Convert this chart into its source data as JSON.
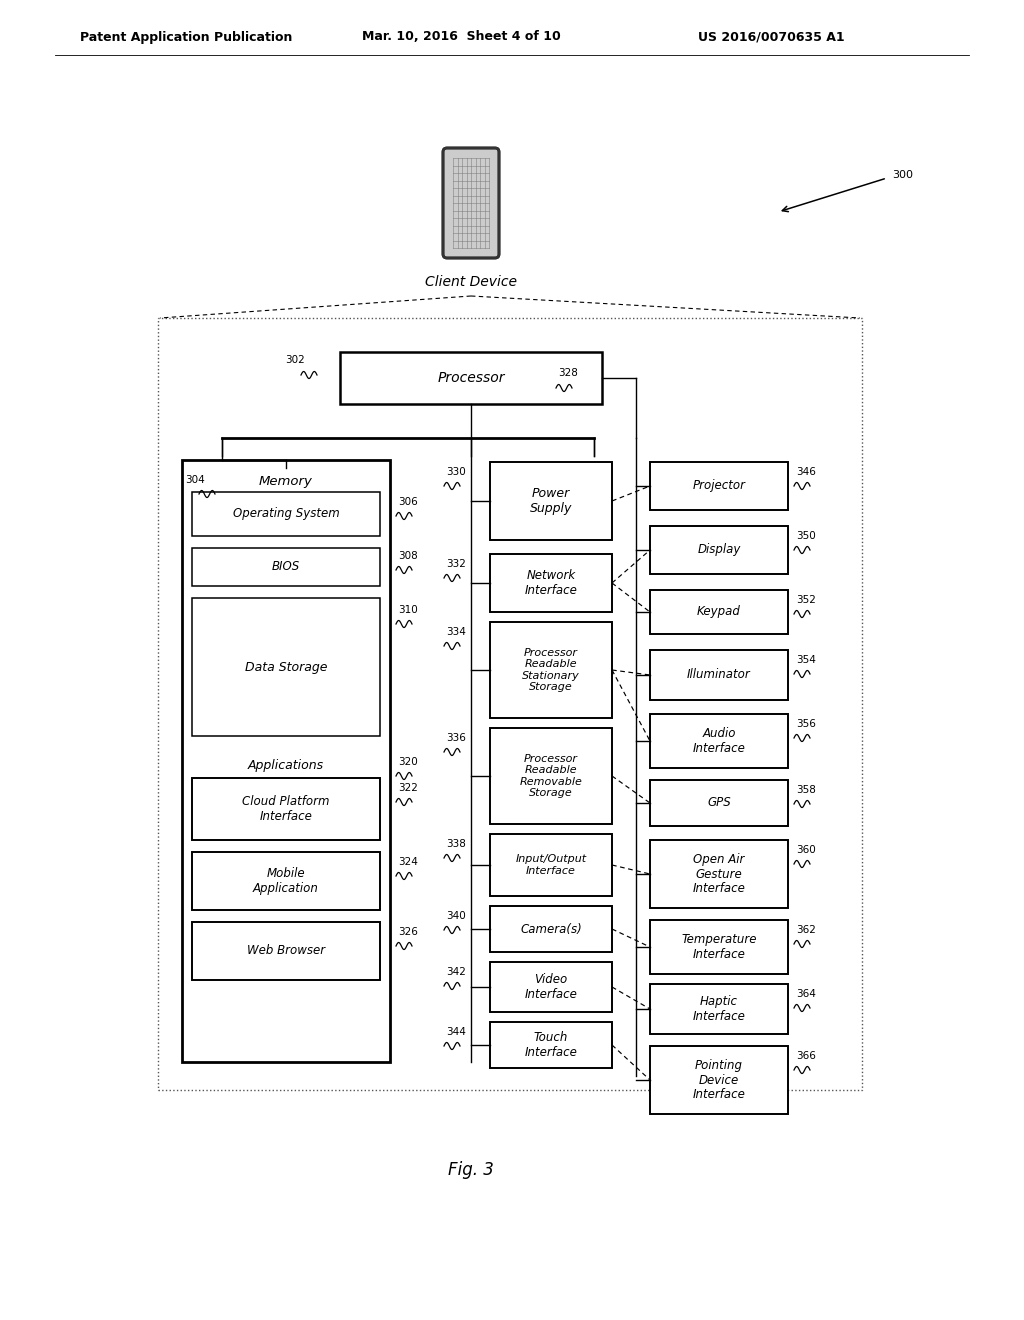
{
  "bg_color": "#ffffff",
  "header_left": "Patent Application Publication",
  "header_mid": "Mar. 10, 2016  Sheet 4 of 10",
  "header_right": "US 2016/0070635 A1",
  "fig_label": "Fig. 3",
  "client_device_label": "Client Device",
  "processor_label": "Processor",
  "memory_label": "Memory",
  "applications_label": "Applications",
  "ref_300": "300",
  "ref_302": "302",
  "ref_304": "304",
  "ref_320": "320",
  "ref_328": "328",
  "memory_items": [
    {
      "label": "Operating System",
      "ref": "306"
    },
    {
      "label": "BIOS",
      "ref": "308"
    },
    {
      "label": "Data Storage",
      "ref": "310"
    }
  ],
  "app_items": [
    {
      "label": "Cloud Platform\nInterface",
      "ref": "322"
    },
    {
      "label": "Mobile\nApplication",
      "ref": "324"
    },
    {
      "label": "Web Browser",
      "ref": "326"
    }
  ],
  "middle_items": [
    {
      "label": "Power\nSupply",
      "ref": "330"
    },
    {
      "label": "Network\nInterface",
      "ref": "332"
    },
    {
      "label": "Processor\nReadable\nStationary\nStorage",
      "ref": "334"
    },
    {
      "label": "Processor\nReadable\nRemovable\nStorage",
      "ref": "336"
    },
    {
      "label": "Input/Output\nInterface",
      "ref": "338"
    },
    {
      "label": "Camera(s)",
      "ref": "340"
    },
    {
      "label": "Video\nInterface",
      "ref": "342"
    },
    {
      "label": "Touch\nInterface",
      "ref": "344"
    }
  ],
  "right_items": [
    {
      "label": "Projector",
      "ref": "346"
    },
    {
      "label": "Display",
      "ref": "350"
    },
    {
      "label": "Keypad",
      "ref": "352"
    },
    {
      "label": "Illuminator",
      "ref": "354"
    },
    {
      "label": "Audio\nInterface",
      "ref": "356"
    },
    {
      "label": "GPS",
      "ref": "358"
    },
    {
      "label": "Open Air\nGesture\nInterface",
      "ref": "360"
    },
    {
      "label": "Temperature\nInterface",
      "ref": "362"
    },
    {
      "label": "Haptic\nInterface",
      "ref": "364"
    },
    {
      "label": "Pointing\nDevice\nInterface",
      "ref": "366"
    }
  ]
}
